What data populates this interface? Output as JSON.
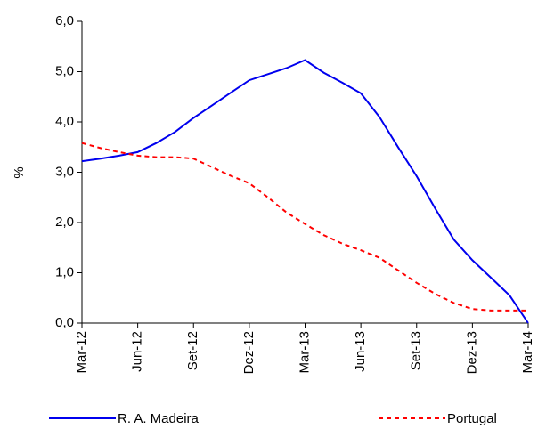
{
  "chart_data": {
    "type": "line",
    "y_label": "%",
    "categories": [
      "Mar-12",
      null,
      null,
      "Jun-12",
      null,
      null,
      "Set-12",
      null,
      null,
      "Dez-12",
      null,
      null,
      "Mar-13",
      null,
      null,
      "Jun-13",
      null,
      null,
      "Set-13",
      null,
      null,
      "Dez-13",
      null,
      null,
      "Mar-14"
    ],
    "series": [
      {
        "name": "R. A. Madeira",
        "color": "#0000ee",
        "dash": false,
        "values": [
          3.22,
          3.27,
          3.33,
          3.4,
          3.58,
          3.8,
          4.08,
          4.33,
          4.58,
          4.83,
          4.95,
          5.07,
          5.23,
          4.98,
          4.78,
          4.57,
          4.1,
          3.5,
          2.92,
          2.28,
          1.66,
          1.25,
          0.9,
          0.55,
          0.0
        ]
      },
      {
        "name": "Portugal",
        "color": "#ff0000",
        "dash": true,
        "values": [
          3.58,
          3.48,
          3.4,
          3.33,
          3.3,
          3.3,
          3.27,
          3.1,
          2.93,
          2.78,
          2.5,
          2.2,
          1.97,
          1.75,
          1.58,
          1.45,
          1.3,
          1.05,
          0.8,
          0.58,
          0.4,
          0.28,
          0.25,
          0.25,
          0.25
        ]
      }
    ],
    "ylim": [
      0,
      6
    ],
    "yticks": [
      {
        "value": 0,
        "label": "0,0"
      },
      {
        "value": 1,
        "label": "1,0"
      },
      {
        "value": 2,
        "label": "2,0"
      },
      {
        "value": 3,
        "label": "3,0"
      },
      {
        "value": 4,
        "label": "4,0"
      },
      {
        "value": 5,
        "label": "5,0"
      },
      {
        "value": 6,
        "label": "6,0"
      }
    ],
    "grid": false
  }
}
